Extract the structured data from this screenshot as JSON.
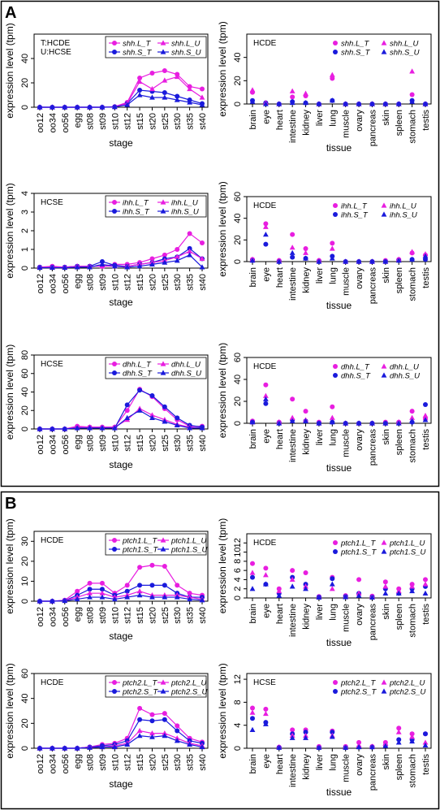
{
  "figure": {
    "panel_a_letter": "A",
    "panel_b_letter": "B",
    "stage_axis_title": "stage",
    "tissue_axis_title": "tissue",
    "y_axis_title": "expression level (tpm)",
    "stage_tick_labels": [
      "oo12",
      "oo34",
      "oo56",
      "egg",
      "st08",
      "st09",
      "st10",
      "st12",
      "st15",
      "st20",
      "st25",
      "st30",
      "st35",
      "st40"
    ],
    "tissue_tick_labels": [
      "brain",
      "eye",
      "heart",
      "intestine",
      "kidney",
      "liver",
      "lung",
      "muscle",
      "ovary",
      "pancreas",
      "skin",
      "spleen",
      "stomach",
      "testis"
    ],
    "colors": {
      "L": "#e81ee0",
      "S": "#1a1adc"
    }
  },
  "chart_data": [
    {
      "type": "line",
      "gene": "shh",
      "note_lines": [
        "T:HCDE",
        "U:HCSE"
      ],
      "x": [
        "oo12",
        "oo34",
        "oo56",
        "egg",
        "st08",
        "st09",
        "st10",
        "st12",
        "st15",
        "st20",
        "st25",
        "st30",
        "st35",
        "st40"
      ],
      "ylim": [
        0,
        60
      ],
      "yticks": [
        0,
        20,
        40
      ],
      "series": [
        {
          "name": "shh.L_T",
          "values": [
            0,
            0,
            0,
            0,
            0,
            0,
            0.5,
            4,
            24,
            28,
            30,
            27,
            17,
            15
          ]
        },
        {
          "name": "shh.S_T",
          "values": [
            0,
            0,
            0,
            0,
            0,
            0,
            0.3,
            3,
            14,
            13,
            12,
            9,
            6,
            3
          ]
        },
        {
          "name": "shh.L_U",
          "values": [
            0,
            0,
            0,
            0,
            0,
            0,
            0.3,
            3,
            21,
            15,
            22,
            25,
            15,
            8
          ]
        },
        {
          "name": "shh.S_U",
          "values": [
            0,
            0,
            0,
            0,
            0,
            0,
            0.2,
            2,
            10,
            8,
            8,
            6,
            4,
            2
          ]
        }
      ]
    },
    {
      "type": "scatter",
      "gene": "shh",
      "note_lines": [
        "HCDE"
      ],
      "x": [
        "brain",
        "eye",
        "heart",
        "intestine",
        "kidney",
        "liver",
        "lung",
        "muscle",
        "ovary",
        "pancreas",
        "skin",
        "spleen",
        "stomach",
        "testis"
      ],
      "ylim": [
        0,
        60
      ],
      "yticks": [
        0,
        20,
        40
      ],
      "series": [
        {
          "name": "shh.L_T",
          "values": [
            10,
            1,
            0,
            6,
            7,
            0,
            22,
            0,
            0,
            0,
            0,
            0,
            8,
            0
          ]
        },
        {
          "name": "shh.S_T",
          "values": [
            3,
            1,
            0,
            2,
            1,
            0,
            3,
            0,
            0,
            0,
            0,
            0,
            3,
            0
          ]
        },
        {
          "name": "shh.L_U",
          "values": [
            12,
            1,
            0,
            11,
            9,
            0,
            25,
            0,
            0,
            0,
            0,
            0,
            28,
            0
          ]
        },
        {
          "name": "shh.S_U",
          "values": [
            2,
            0,
            0,
            1,
            1,
            0,
            3,
            0,
            0,
            0,
            0,
            0,
            2,
            0
          ]
        }
      ]
    },
    {
      "type": "line",
      "gene": "ihh",
      "note_lines": [
        "HCSE"
      ],
      "x": [
        "oo12",
        "oo34",
        "oo56",
        "egg",
        "st08",
        "st09",
        "st10",
        "st12",
        "st15",
        "st20",
        "st25",
        "st30",
        "st35",
        "st40"
      ],
      "ylim": [
        0,
        4
      ],
      "yticks": [
        0,
        1,
        2,
        3,
        4
      ],
      "series": [
        {
          "name": "ihh.L_T",
          "values": [
            0.05,
            0.1,
            0.05,
            0.1,
            0.1,
            0.1,
            0.2,
            0.2,
            0.3,
            0.5,
            0.7,
            1.0,
            1.85,
            1.35
          ]
        },
        {
          "name": "ihh.S_T",
          "values": [
            0.05,
            0.05,
            0.05,
            0.1,
            0.1,
            0.35,
            0.15,
            0.1,
            0.2,
            0.3,
            0.5,
            0.6,
            1.05,
            0.5
          ]
        },
        {
          "name": "ihh.L_U",
          "values": [
            0.05,
            0.05,
            0.05,
            0.1,
            0.1,
            0.1,
            0.1,
            0.1,
            0.2,
            0.3,
            0.4,
            0.6,
            0.9,
            0.5
          ]
        },
        {
          "name": "ihh.S_U",
          "values": [
            0.02,
            0.02,
            0.02,
            0.05,
            0.05,
            0.2,
            0.1,
            0.05,
            0.1,
            0.2,
            0.3,
            0.4,
            0.7,
            0.05
          ]
        }
      ]
    },
    {
      "type": "scatter",
      "gene": "ihh",
      "note_lines": [
        "HCDE"
      ],
      "x": [
        "brain",
        "eye",
        "heart",
        "intestine",
        "kidney",
        "liver",
        "lung",
        "muscle",
        "ovary",
        "pancreas",
        "skin",
        "spleen",
        "stomach",
        "testis"
      ],
      "ylim": [
        0,
        60
      ],
      "yticks": [
        0,
        20,
        40,
        60
      ],
      "series": [
        {
          "name": "ihh.L_T",
          "values": [
            2,
            35,
            1,
            25,
            12,
            1,
            17,
            0,
            0,
            0,
            1,
            2,
            8,
            6
          ]
        },
        {
          "name": "ihh.S_T",
          "values": [
            1,
            16,
            0,
            4,
            3,
            0,
            5,
            0,
            0,
            0,
            0,
            1,
            2,
            2
          ]
        },
        {
          "name": "ihh.L_U",
          "values": [
            2,
            32,
            1,
            13,
            8,
            1,
            12,
            0,
            0,
            0,
            0,
            2,
            9,
            7
          ]
        },
        {
          "name": "ihh.S_U",
          "values": [
            1,
            25,
            0,
            8,
            3,
            0,
            3,
            0,
            0,
            0,
            0,
            1,
            2,
            5
          ]
        }
      ]
    },
    {
      "type": "line",
      "gene": "dhh",
      "note_lines": [
        "HCSE"
      ],
      "x": [
        "oo12",
        "oo34",
        "oo56",
        "egg",
        "st08",
        "st09",
        "st10",
        "st12",
        "st15",
        "st20",
        "st25",
        "st30",
        "st35",
        "st40"
      ],
      "ylim": [
        0,
        80
      ],
      "yticks": [
        0,
        20,
        40,
        60,
        80
      ],
      "series": [
        {
          "name": "dhh.L_T",
          "values": [
            0,
            0,
            0,
            3,
            2,
            2,
            2,
            20,
            43,
            35,
            22,
            10,
            3,
            3
          ]
        },
        {
          "name": "dhh.S_T",
          "values": [
            0,
            0,
            0,
            1,
            1,
            1,
            1,
            26,
            42,
            36,
            24,
            12,
            4,
            2
          ]
        },
        {
          "name": "dhh.L_U",
          "values": [
            0,
            0,
            0,
            2,
            2,
            2,
            2,
            10,
            22,
            15,
            10,
            5,
            2,
            1
          ]
        },
        {
          "name": "dhh.S_U",
          "values": [
            0,
            0,
            0,
            1,
            1,
            1,
            1,
            12,
            20,
            12,
            8,
            4,
            1,
            1
          ]
        }
      ]
    },
    {
      "type": "scatter",
      "gene": "dhh",
      "note_lines": [
        "HCDE"
      ],
      "x": [
        "brain",
        "eye",
        "heart",
        "intestine",
        "kidney",
        "liver",
        "lung",
        "muscle",
        "ovary",
        "pancreas",
        "skin",
        "spleen",
        "stomach",
        "testis"
      ],
      "ylim": [
        0,
        60
      ],
      "yticks": [
        0,
        20,
        40,
        60
      ],
      "series": [
        {
          "name": "dhh.L_T",
          "values": [
            2,
            35,
            1,
            22,
            11,
            1,
            15,
            0,
            0,
            0,
            1,
            1,
            11,
            4
          ]
        },
        {
          "name": "dhh.S_T",
          "values": [
            1,
            18,
            0,
            3,
            2,
            0,
            1,
            0,
            0,
            0,
            0,
            0,
            1,
            17
          ]
        },
        {
          "name": "dhh.L_U",
          "values": [
            1,
            25,
            1,
            5,
            3,
            0,
            5,
            0,
            0,
            0,
            0,
            1,
            5,
            7
          ]
        },
        {
          "name": "dhh.S_U",
          "values": [
            1,
            22,
            0,
            2,
            2,
            0,
            1,
            0,
            0,
            0,
            0,
            0,
            2,
            3
          ]
        }
      ]
    },
    {
      "type": "line",
      "gene": "ptch1",
      "note_lines": [
        "HCDE"
      ],
      "x": [
        "oo12",
        "oo34",
        "oo56",
        "egg",
        "st08",
        "st09",
        "st10",
        "st12",
        "st15",
        "st20",
        "st25",
        "st30",
        "st35",
        "st40"
      ],
      "ylim": [
        0,
        35
      ],
      "yticks": [
        0,
        10,
        20,
        30
      ],
      "series": [
        {
          "name": "ptch1.L_T",
          "values": [
            0,
            0,
            0.5,
            5,
            9,
            9,
            4,
            8,
            17,
            18,
            17.5,
            8,
            4,
            3
          ]
        },
        {
          "name": "ptch1.S_T",
          "values": [
            0,
            0,
            0.3,
            3,
            6,
            6,
            3,
            5,
            8,
            8,
            8,
            4,
            2,
            2
          ]
        },
        {
          "name": "ptch1.L_U",
          "values": [
            0,
            0,
            0.3,
            2,
            4,
            4,
            2,
            3,
            5,
            3,
            3,
            3,
            2,
            1
          ]
        },
        {
          "name": "ptch1.S_U",
          "values": [
            0,
            0,
            0.2,
            1,
            2,
            2,
            1,
            2,
            3,
            2,
            2,
            2,
            1,
            0.5
          ]
        }
      ]
    },
    {
      "type": "scatter",
      "gene": "ptch1",
      "note_lines": [
        "HCDE"
      ],
      "x": [
        "brain",
        "eye",
        "heart",
        "intestine",
        "kidney",
        "liver",
        "lung",
        "muscle",
        "ovary",
        "pancreas",
        "skin",
        "spleen",
        "stomach",
        "testis"
      ],
      "ylim": [
        0,
        14
      ],
      "yticks": [
        0,
        2,
        4,
        6,
        8,
        10,
        12
      ],
      "series": [
        {
          "name": "ptch1.L_T",
          "values": [
            7.5,
            6.5,
            2.0,
            6.0,
            5.5,
            0.3,
            4.5,
            0.5,
            4.0,
            0.4,
            3.5,
            2.0,
            3.0,
            4.0
          ]
        },
        {
          "name": "ptch1.S_T",
          "values": [
            4.5,
            3.0,
            1.0,
            4.5,
            3.0,
            0.2,
            4.2,
            0.3,
            1.0,
            0.2,
            2.0,
            1.0,
            2.0,
            2.5
          ]
        },
        {
          "name": "ptch1.L_U",
          "values": [
            5.5,
            5.0,
            1.5,
            4.0,
            2.5,
            0.2,
            2.0,
            0.3,
            1.0,
            0.3,
            2.5,
            1.5,
            2.5,
            3.0
          ]
        },
        {
          "name": "ptch1.S_U",
          "values": [
            2.0,
            3.0,
            0.5,
            2.5,
            2.0,
            0.1,
            3.0,
            0.2,
            0.5,
            0.1,
            1.0,
            1.0,
            1.5,
            1.0
          ]
        }
      ]
    },
    {
      "type": "line",
      "gene": "ptch2",
      "note_lines": [
        "HCDE"
      ],
      "x": [
        "oo12",
        "oo34",
        "oo56",
        "egg",
        "st08",
        "st09",
        "st10",
        "st12",
        "st15",
        "st20",
        "st25",
        "st30",
        "st35",
        "st40"
      ],
      "ylim": [
        0,
        60
      ],
      "yticks": [
        0,
        20,
        40,
        60
      ],
      "series": [
        {
          "name": "ptch2.L_T",
          "values": [
            0,
            0,
            0,
            0,
            1,
            3,
            4,
            8,
            32,
            27,
            28,
            18,
            8,
            5
          ]
        },
        {
          "name": "ptch2.S_T",
          "values": [
            0,
            0,
            0,
            0,
            1,
            2,
            3,
            6,
            23,
            22,
            23,
            14,
            6,
            4
          ]
        },
        {
          "name": "ptch2.L_U",
          "values": [
            0,
            0,
            0,
            0,
            1,
            1,
            2,
            4,
            14,
            12,
            12,
            8,
            4,
            2
          ]
        },
        {
          "name": "ptch2.S_U",
          "values": [
            0,
            0,
            0,
            0,
            0.5,
            1,
            1,
            3,
            10,
            9,
            10,
            6,
            3,
            1
          ]
        }
      ]
    },
    {
      "type": "scatter",
      "gene": "ptch2",
      "note_lines": [
        "HCSE"
      ],
      "x": [
        "brain",
        "eye",
        "heart",
        "intestine",
        "kidney",
        "liver",
        "lung",
        "muscle",
        "ovary",
        "pancreas",
        "skin",
        "spleen",
        "stomach",
        "testis"
      ],
      "ylim": [
        0,
        13
      ],
      "yticks": [
        0,
        4,
        8,
        12
      ],
      "series": [
        {
          "name": "ptch2.L_T",
          "values": [
            7.0,
            6.8,
            0.2,
            3.2,
            3.2,
            0.3,
            3.0,
            0.3,
            1.0,
            0.3,
            1.0,
            3.5,
            2.5,
            2.5
          ]
        },
        {
          "name": "ptch2.S_T",
          "values": [
            5.2,
            4.5,
            0.1,
            2.5,
            2.8,
            0.1,
            2.8,
            0.1,
            0.2,
            0.2,
            0.5,
            1.5,
            1.5,
            2.5
          ]
        },
        {
          "name": "ptch2.L_U",
          "values": [
            6.2,
            6.0,
            0.2,
            2.2,
            2.2,
            0.2,
            2.2,
            0.2,
            0.5,
            0.3,
            0.8,
            2.8,
            2.0,
            1.0
          ]
        },
        {
          "name": "ptch2.S_U",
          "values": [
            3.2,
            4.2,
            0.1,
            1.8,
            1.8,
            0.1,
            2.0,
            0.1,
            0.2,
            0.2,
            0.4,
            1.0,
            1.2,
            0.5
          ]
        }
      ]
    }
  ]
}
